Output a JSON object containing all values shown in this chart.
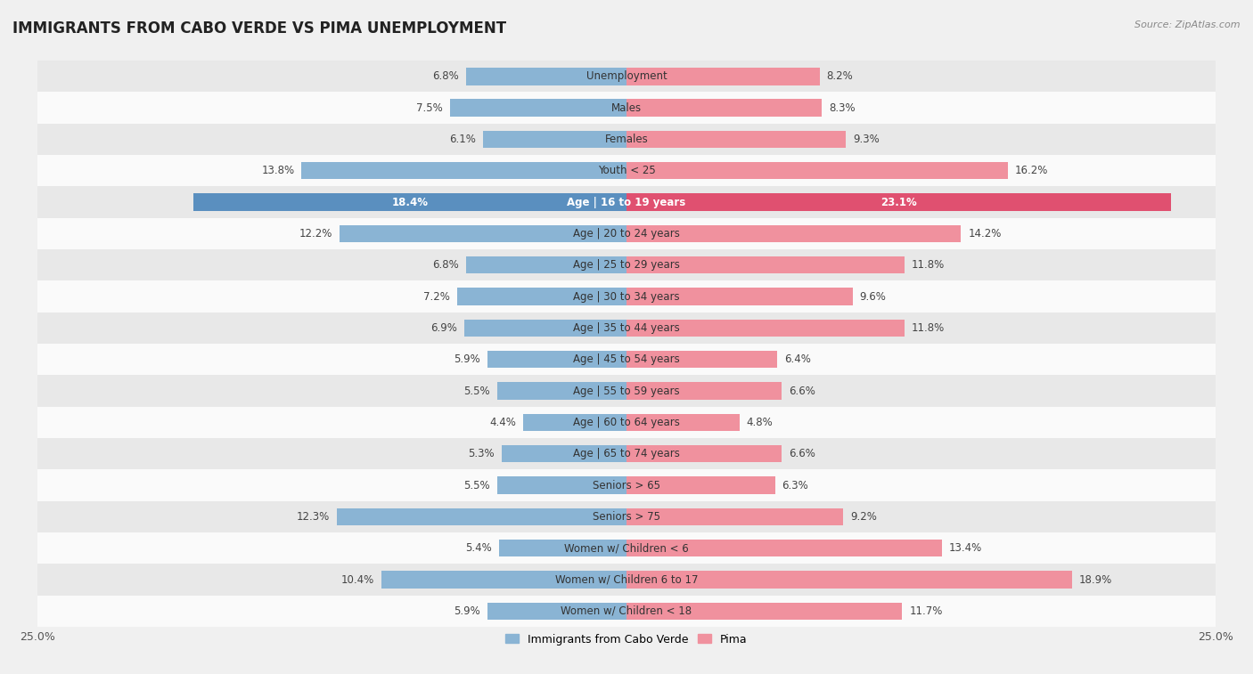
{
  "title": "IMMIGRANTS FROM CABO VERDE VS PIMA UNEMPLOYMENT",
  "source": "Source: ZipAtlas.com",
  "categories": [
    "Unemployment",
    "Males",
    "Females",
    "Youth < 25",
    "Age | 16 to 19 years",
    "Age | 20 to 24 years",
    "Age | 25 to 29 years",
    "Age | 30 to 34 years",
    "Age | 35 to 44 years",
    "Age | 45 to 54 years",
    "Age | 55 to 59 years",
    "Age | 60 to 64 years",
    "Age | 65 to 74 years",
    "Seniors > 65",
    "Seniors > 75",
    "Women w/ Children < 6",
    "Women w/ Children 6 to 17",
    "Women w/ Children < 18"
  ],
  "cabo_verde": [
    6.8,
    7.5,
    6.1,
    13.8,
    18.4,
    12.2,
    6.8,
    7.2,
    6.9,
    5.9,
    5.5,
    4.4,
    5.3,
    5.5,
    12.3,
    5.4,
    10.4,
    5.9
  ],
  "pima": [
    8.2,
    8.3,
    9.3,
    16.2,
    23.1,
    14.2,
    11.8,
    9.6,
    11.8,
    6.4,
    6.6,
    4.8,
    6.6,
    6.3,
    9.2,
    13.4,
    18.9,
    11.7
  ],
  "cabo_verde_color": "#8ab4d4",
  "pima_color": "#f0919e",
  "cabo_verde_highlight": "#5a8fbf",
  "pima_highlight": "#e05070",
  "bg_color": "#f0f0f0",
  "row_even_color": "#e8e8e8",
  "row_odd_color": "#fafafa",
  "highlight_index": 4,
  "max_val": 25.0,
  "bar_height": 0.55,
  "label_fontsize": 8.5,
  "title_fontsize": 12,
  "cat_fontsize": 8.5
}
